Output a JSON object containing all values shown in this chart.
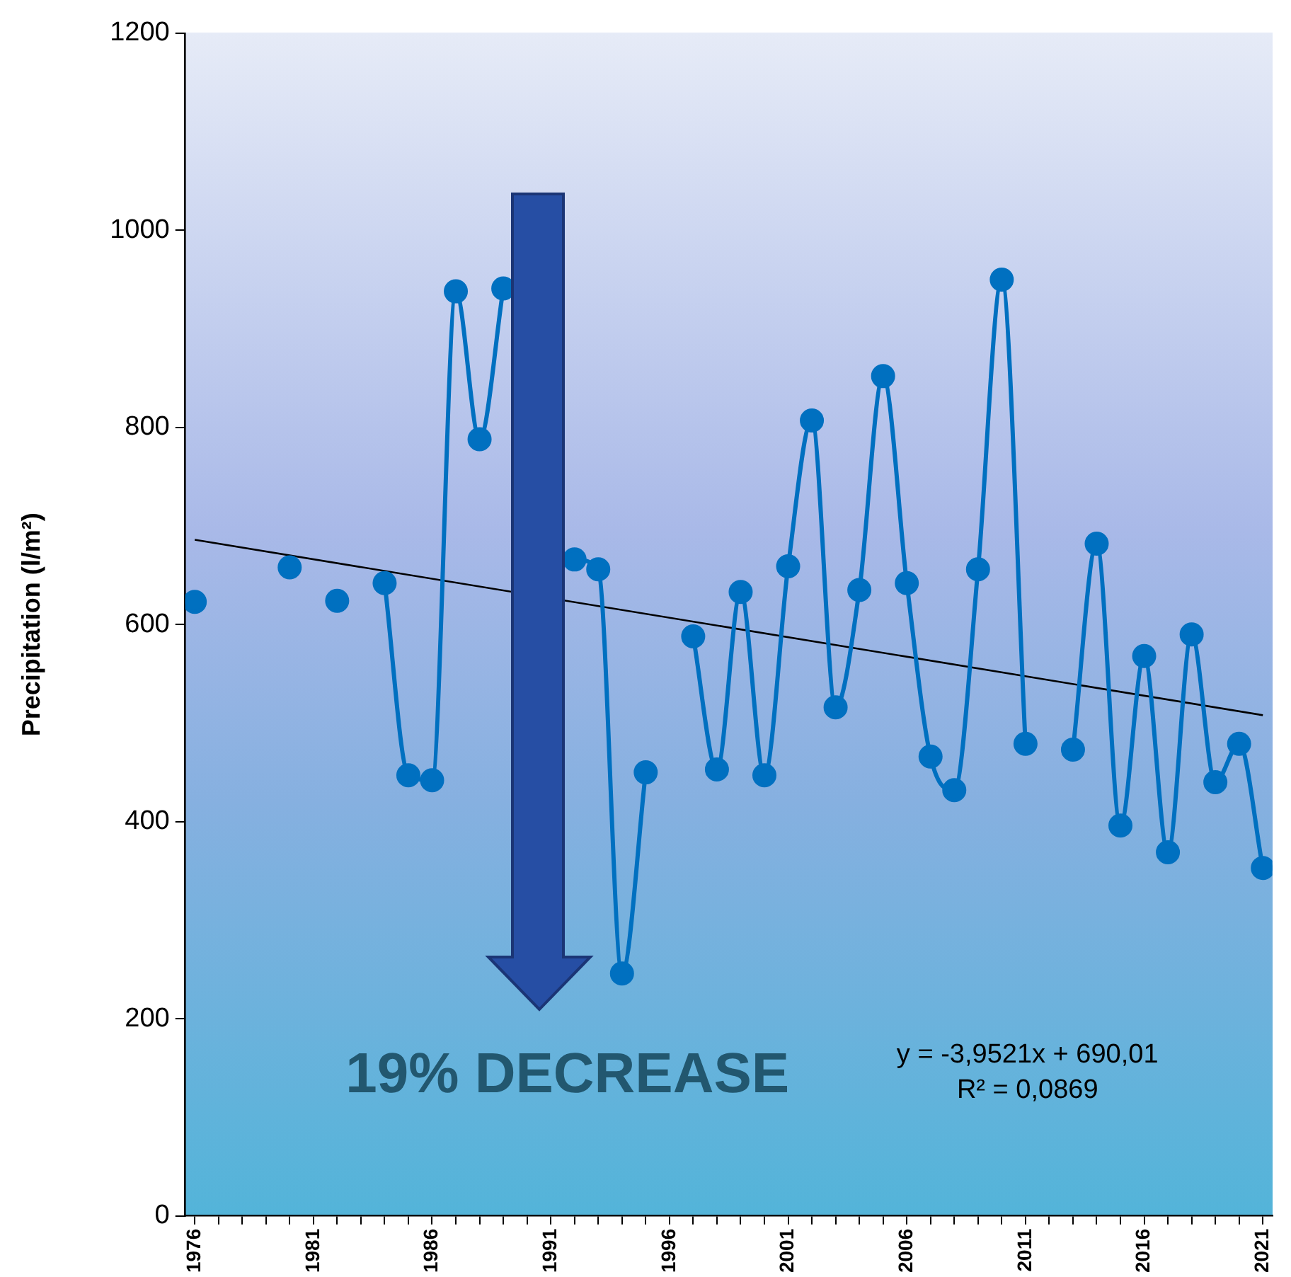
{
  "chart_data": {
    "type": "line",
    "ylabel": "Precipitation (l/m²)",
    "x": [
      1976,
      1977,
      1978,
      1979,
      1980,
      1981,
      1982,
      1983,
      1984,
      1985,
      1986,
      1987,
      1988,
      1989,
      1990,
      1991,
      1992,
      1993,
      1994,
      1995,
      1996,
      1997,
      1998,
      1999,
      2000,
      2001,
      2002,
      2003,
      2004,
      2005,
      2006,
      2007,
      2008,
      2009,
      2010,
      2011,
      2012,
      2013,
      2014,
      2015,
      2016,
      2017,
      2018,
      2019,
      2020,
      2021
    ],
    "series": [
      {
        "color": "#0070c0",
        "marker": "circle",
        "values": [
          623,
          null,
          null,
          null,
          658,
          null,
          624,
          null,
          642,
          447,
          442,
          938,
          788,
          941,
          null,
          null,
          666,
          656,
          246,
          450,
          null,
          588,
          453,
          633,
          447,
          659,
          807,
          516,
          635,
          852,
          642,
          466,
          432,
          656,
          950,
          479,
          null,
          473,
          682,
          396,
          568,
          369,
          590,
          440,
          479,
          353
        ]
      },
      {
        "color": "#000000",
        "marker": "none",
        "x": [
          1976,
          2021
        ],
        "values": [
          686,
          508
        ]
      }
    ],
    "xlim": [
      1975.6,
      2021.4
    ],
    "ylim": [
      0,
      1200
    ],
    "yticks": [
      0,
      200,
      400,
      600,
      800,
      1000,
      1200
    ],
    "xticks": [
      1976,
      {
        "value": 1977,
        "label": null
      },
      {
        "value": 1978,
        "label": null
      },
      {
        "value": 1979,
        "label": null
      },
      {
        "value": 1980,
        "label": null
      },
      1981,
      {
        "value": 1982,
        "label": null
      },
      {
        "value": 1983,
        "label": null
      },
      {
        "value": 1984,
        "label": null
      },
      {
        "value": 1985,
        "label": null
      },
      1986,
      {
        "value": 1987,
        "label": null
      },
      {
        "value": 1988,
        "label": null
      },
      {
        "value": 1989,
        "label": null
      },
      {
        "value": 1990,
        "label": null
      },
      1991,
      {
        "value": 1992,
        "label": null
      },
      {
        "value": 1993,
        "label": null
      },
      {
        "value": 1994,
        "label": null
      },
      {
        "value": 1995,
        "label": null
      },
      1996,
      {
        "value": 1997,
        "label": null
      },
      {
        "value": 1998,
        "label": null
      },
      {
        "value": 1999,
        "label": null
      },
      {
        "value": 2000,
        "label": null
      },
      2001,
      {
        "value": 2002,
        "label": null
      },
      {
        "value": 2003,
        "label": null
      },
      {
        "value": 2004,
        "label": null
      },
      {
        "value": 2005,
        "label": null
      },
      2006,
      {
        "value": 2007,
        "label": null
      },
      {
        "value": 2008,
        "label": null
      },
      {
        "value": 2009,
        "label": null
      },
      {
        "value": 2010,
        "label": null
      },
      2011,
      {
        "value": 2012,
        "label": null
      },
      {
        "value": 2013,
        "label": null
      },
      {
        "value": 2014,
        "label": null
      },
      {
        "value": 2015,
        "label": null
      },
      2016,
      {
        "value": 2017,
        "label": null
      },
      {
        "value": 2018,
        "label": null
      },
      {
        "value": 2019,
        "label": null
      },
      {
        "value": 2020,
        "label": null
      },
      2021
    ],
    "grid": false,
    "legend": false,
    "line_style": "solid",
    "annotations": [
      "19% DECREASE",
      "y = -3,9521x + 690,01",
      "R² = 0,0869"
    ]
  }
}
